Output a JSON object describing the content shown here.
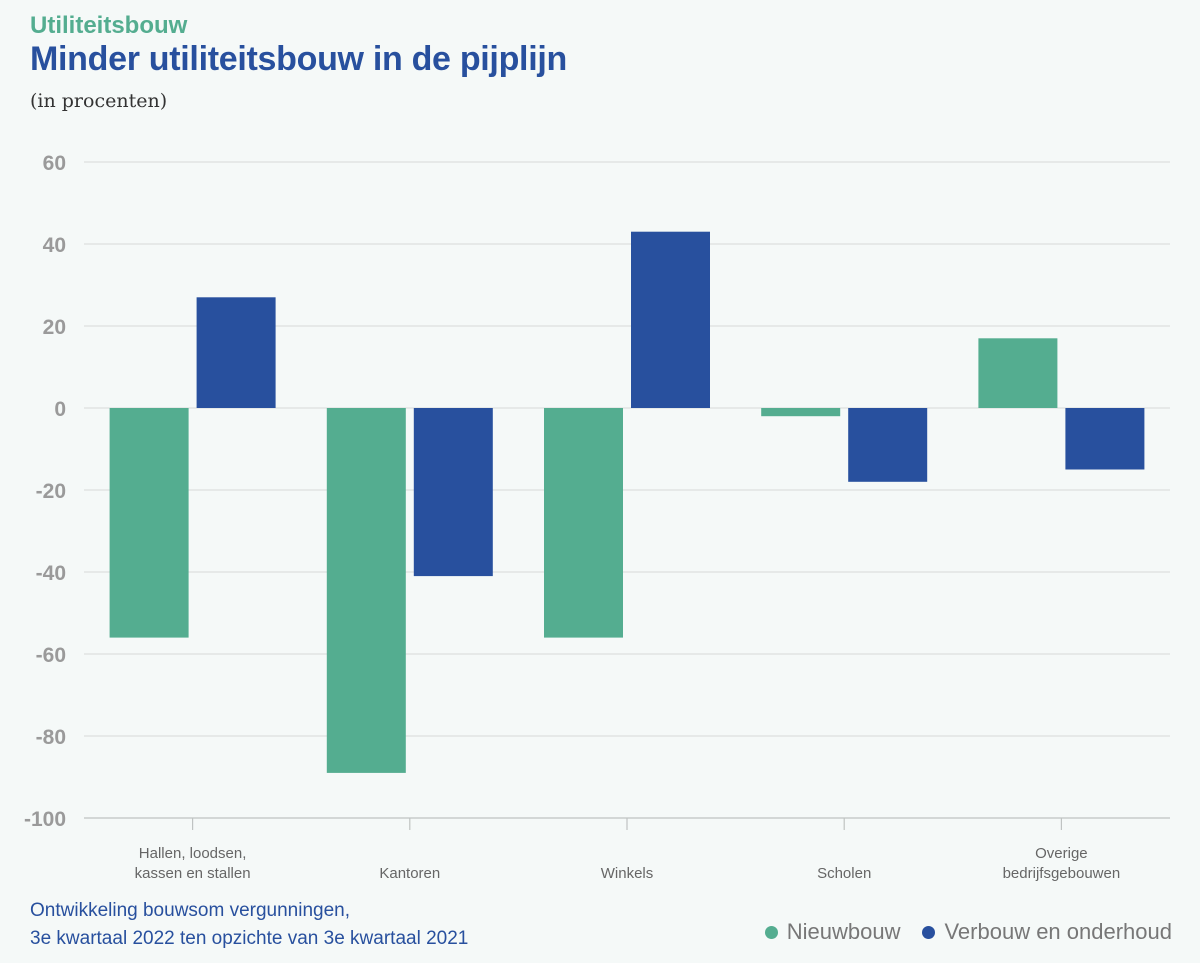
{
  "header": {
    "kicker": "Utiliteitsbouw",
    "title": "Minder utiliteitsbouw in de pijplijn",
    "subtitle": "(in procenten)"
  },
  "footnote": {
    "line1": "Ontwikkeling bouwsom vergunningen,",
    "line2": "3e kwartaal 2022 ten opzichte van 3e kwartaal 2021"
  },
  "colors": {
    "nieuwbouw": "#54ad90",
    "verbouw": "#28509e",
    "grid": "#d6d9d8",
    "tick_label": "#9a9a9a",
    "category_label": "#666666"
  },
  "chart_data": {
    "type": "bar",
    "title": "Minder utiliteitsbouw in de pijplijn",
    "subtitle": "(in procenten)",
    "xlabel": "",
    "ylabel": "",
    "ylim": [
      -100,
      60
    ],
    "yticks": [
      60,
      40,
      20,
      0,
      -20,
      -40,
      -60,
      -80,
      -100
    ],
    "grid": true,
    "legend_position": "bottom-right",
    "categories": [
      [
        "Hallen, loodsen,",
        "kassen en stallen"
      ],
      [
        "Kantoren"
      ],
      [
        "Winkels"
      ],
      [
        "Scholen"
      ],
      [
        "Overige",
        "bedrijfsgebouwen"
      ]
    ],
    "series": [
      {
        "name": "Nieuwbouw",
        "color": "#54ad90",
        "values": [
          -56,
          -89,
          -56,
          -2,
          17
        ]
      },
      {
        "name": "Verbouw en onderhoud",
        "color": "#28509e",
        "values": [
          27,
          -41,
          43,
          -18,
          -15
        ]
      }
    ]
  }
}
